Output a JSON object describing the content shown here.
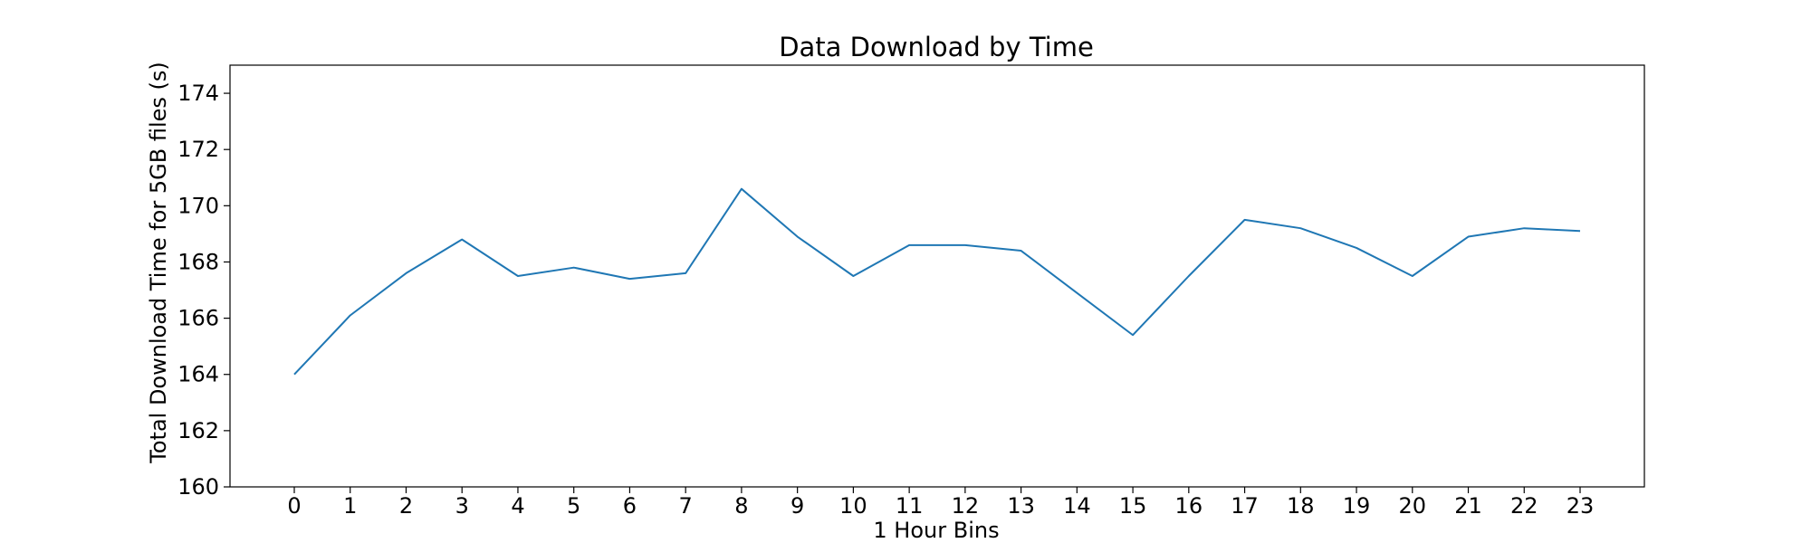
{
  "chart_data": {
    "type": "line",
    "title": "Data Download by Time",
    "xlabel": "1 Hour Bins",
    "ylabel": "Total Download Time for 5GB files (s)",
    "x": [
      0,
      1,
      2,
      3,
      4,
      5,
      6,
      7,
      8,
      9,
      10,
      11,
      12,
      13,
      14,
      15,
      16,
      17,
      18,
      19,
      20,
      21,
      22,
      23
    ],
    "series": [
      {
        "values": [
          164.0,
          166.1,
          167.6,
          168.8,
          167.5,
          167.8,
          167.4,
          167.6,
          170.6,
          168.9,
          167.5,
          168.6,
          168.6,
          168.4,
          166.9,
          165.4,
          167.5,
          169.5,
          169.2,
          168.5,
          167.5,
          168.9,
          169.2,
          169.1
        ]
      }
    ],
    "xticks": [
      0,
      1,
      2,
      3,
      4,
      5,
      6,
      7,
      8,
      9,
      10,
      11,
      12,
      13,
      14,
      15,
      16,
      17,
      18,
      19,
      20,
      21,
      22,
      23
    ],
    "yticks": [
      160,
      162,
      164,
      166,
      168,
      170,
      172,
      174
    ],
    "xlim": [
      -1.15,
      24.15
    ],
    "ylim": [
      160,
      175
    ],
    "grid": false,
    "line_color": "#1f77b4"
  }
}
